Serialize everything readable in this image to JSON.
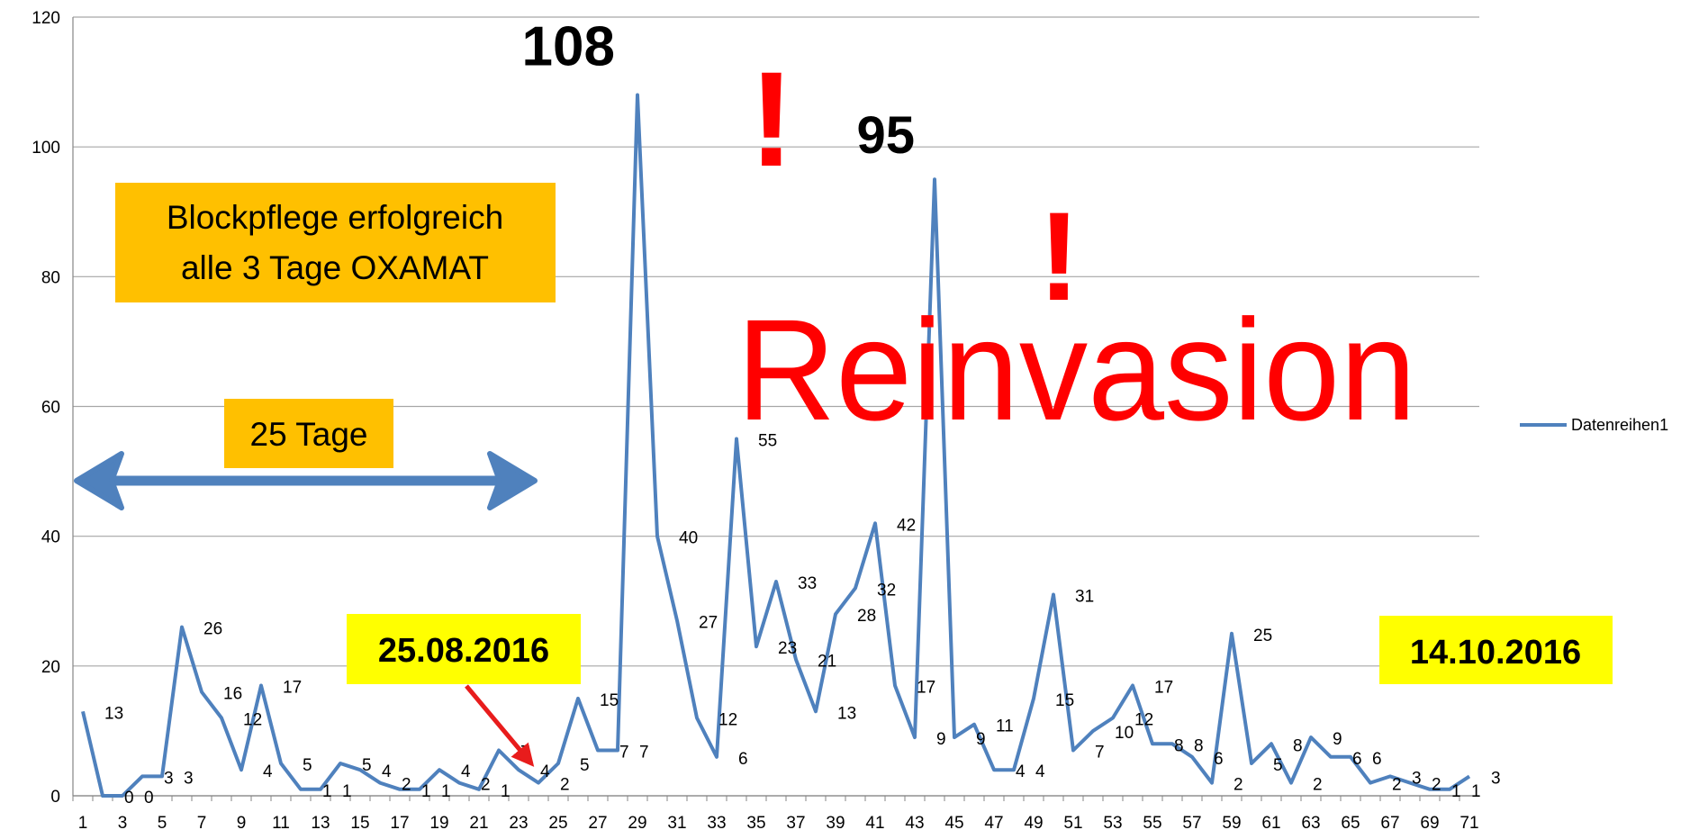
{
  "chart_data": {
    "type": "line",
    "categories": [
      1,
      null,
      3,
      null,
      5,
      null,
      7,
      null,
      9,
      null,
      11,
      null,
      13,
      null,
      15,
      null,
      17,
      null,
      19,
      null,
      21,
      null,
      23,
      null,
      25,
      null,
      27,
      null,
      29,
      null,
      31,
      null,
      33,
      null,
      35,
      null,
      37,
      null,
      39,
      null,
      41,
      null,
      43,
      null,
      45,
      null,
      47,
      null,
      49,
      null,
      51,
      null,
      53,
      null,
      55,
      null,
      57,
      null,
      59,
      null,
      61,
      null,
      63,
      null,
      65,
      null,
      67,
      null,
      69,
      null,
      71
    ],
    "series": [
      {
        "name": "Datenreihen1",
        "color": "#4f81bd",
        "values": [
          13,
          0,
          0,
          3,
          3,
          26,
          16,
          12,
          4,
          17,
          5,
          1,
          1,
          5,
          4,
          2,
          1,
          1,
          4,
          2,
          1,
          7,
          4,
          2,
          5,
          15,
          7,
          7,
          108,
          40,
          27,
          12,
          6,
          55,
          23,
          33,
          21,
          13,
          28,
          32,
          42,
          17,
          9,
          95,
          9,
          11,
          4,
          4,
          15,
          31,
          7,
          10,
          12,
          17,
          8,
          8,
          6,
          2,
          25,
          5,
          8,
          2,
          9,
          6,
          6,
          2,
          3,
          2,
          1,
          1,
          3
        ]
      }
    ],
    "ylim": [
      0,
      120
    ],
    "yticks": [
      0,
      20,
      40,
      60,
      80,
      100,
      120
    ],
    "grid": true,
    "legend": "right",
    "annotations": {
      "info_box": [
        "Blockpflege erfolgreich",
        "alle 3 Tage OXAMAT"
      ],
      "duration": "25 Tage",
      "start_date": "25.08.2016",
      "end_date": "14.10.2016",
      "headline": "Reinvasion",
      "exclamation": "!"
    }
  }
}
